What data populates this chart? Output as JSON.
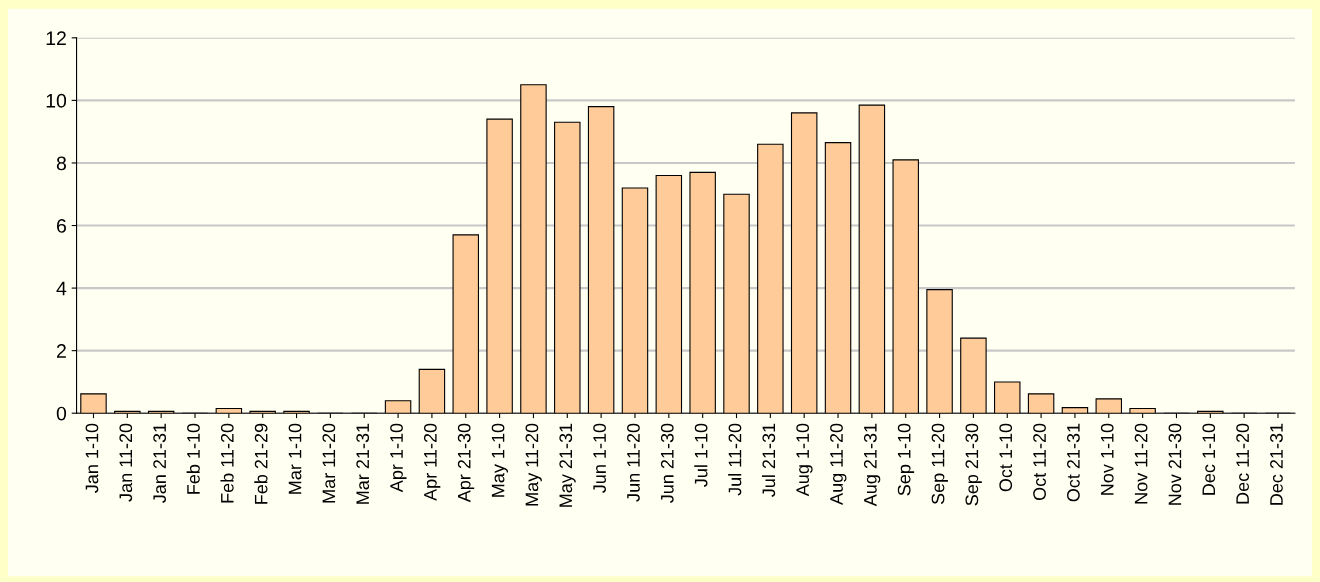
{
  "chart_data": {
    "type": "bar",
    "categories": [
      "Jan 1-10",
      "Jan 11-20",
      "Jan 21-31",
      "Feb 1-10",
      "Feb 11-20",
      "Feb 21-29",
      "Mar 1-10",
      "Mar 11-20",
      "Mar 21-31",
      "Apr 1-10",
      "Apr 11-20",
      "Apr 21-30",
      "May 1-10",
      "May 11-20",
      "May 21-31",
      "Jun 1-10",
      "Jun 11-20",
      "Jun 21-30",
      "Jul 1-10",
      "Jul 11-20",
      "Jul 21-31",
      "Aug 1-10",
      "Aug 11-20",
      "Aug 21-31",
      "Sep 1-10",
      "Sep 11-20",
      "Sep 21-30",
      "Oct 1-10",
      "Oct 11-20",
      "Oct 21-31",
      "Nov 1-10",
      "Nov 11-20",
      "Nov 21-30",
      "Dec 1-10",
      "Dec 11-20",
      "Dec 21-31"
    ],
    "values": [
      0.62,
      0.06,
      0.06,
      0,
      0.15,
      0.06,
      0.06,
      0,
      0,
      0.4,
      1.4,
      5.7,
      9.4,
      10.5,
      9.3,
      9.8,
      7.2,
      7.6,
      7.7,
      7.0,
      8.6,
      9.6,
      8.65,
      9.85,
      8.1,
      3.95,
      2.4,
      1.0,
      0.62,
      0.18,
      0.46,
      0.15,
      0,
      0.06,
      0,
      0
    ],
    "color": "#ffcc99",
    "ylim": [
      0,
      12
    ],
    "yticks": [
      0,
      2,
      4,
      6,
      8,
      10,
      12
    ],
    "grid": "y"
  }
}
